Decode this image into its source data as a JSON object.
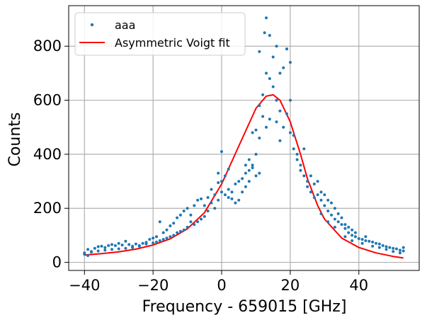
{
  "chart_data": {
    "type": "scatter",
    "xlabel": "Frequency - 659015 [GHz]",
    "ylabel": "Counts",
    "xlim": [
      -44.6,
      57.6
    ],
    "ylim": [
      -30,
      950
    ],
    "xticks": [
      -40,
      -20,
      0,
      20,
      40
    ],
    "yticks": [
      0,
      200,
      400,
      600,
      800
    ],
    "xtick_labels": [
      "−40",
      "−20",
      "0",
      "20",
      "40"
    ],
    "ytick_labels": [
      "0",
      "200",
      "400",
      "600",
      "800"
    ],
    "grid": true,
    "legend_position": "top-left",
    "colors": {
      "data": "#1f77b4",
      "fit": "#ff0000"
    },
    "series": [
      {
        "name": "aaa",
        "kind": "points",
        "points": [
          [
            -40,
            30
          ],
          [
            -39,
            48
          ],
          [
            -38,
            40
          ],
          [
            -37,
            52
          ],
          [
            -36,
            58
          ],
          [
            -35,
            60
          ],
          [
            -34,
            55
          ],
          [
            -33,
            62
          ],
          [
            -32,
            66
          ],
          [
            -31,
            62
          ],
          [
            -30,
            70
          ],
          [
            -29,
            64
          ],
          [
            -28,
            78
          ],
          [
            -27,
            66
          ],
          [
            -26,
            60
          ],
          [
            -25,
            68
          ],
          [
            -24,
            62
          ],
          [
            -23,
            70
          ],
          [
            -22,
            74
          ],
          [
            -21,
            85
          ],
          [
            -20,
            90
          ],
          [
            -19,
            95
          ],
          [
            -18,
            150
          ],
          [
            -17,
            110
          ],
          [
            -16,
            120
          ],
          [
            -15,
            135
          ],
          [
            -14,
            145
          ],
          [
            -13,
            165
          ],
          [
            -12,
            175
          ],
          [
            -11,
            190
          ],
          [
            -10,
            200
          ],
          [
            -9,
            175
          ],
          [
            -8,
            210
          ],
          [
            -7,
            230
          ],
          [
            -6,
            235
          ],
          [
            -5,
            210
          ],
          [
            -4,
            240
          ],
          [
            -3,
            270
          ],
          [
            -2,
            250
          ],
          [
            -1,
            295
          ],
          [
            0,
            300
          ],
          [
            1,
            320
          ],
          [
            2,
            270
          ],
          [
            3,
            260
          ],
          [
            4,
            290
          ],
          [
            5,
            300
          ],
          [
            6,
            310
          ],
          [
            7,
            330
          ],
          [
            8,
            340
          ],
          [
            9,
            360
          ],
          [
            10,
            400
          ],
          [
            11,
            460
          ],
          [
            12,
            620
          ],
          [
            13,
            700
          ],
          [
            14,
            680
          ],
          [
            15,
            650
          ],
          [
            16,
            600
          ],
          [
            17,
            560
          ],
          [
            18,
            500
          ],
          [
            19,
            790
          ],
          [
            20,
            480
          ],
          [
            21,
            420
          ],
          [
            22,
            380
          ],
          [
            23,
            340
          ],
          [
            24,
            320
          ],
          [
            25,
            280
          ],
          [
            26,
            260
          ],
          [
            27,
            290
          ],
          [
            28,
            250
          ],
          [
            29,
            230
          ],
          [
            30,
            210
          ],
          [
            31,
            190
          ],
          [
            32,
            175
          ],
          [
            33,
            160
          ],
          [
            34,
            150
          ],
          [
            35,
            140
          ],
          [
            36,
            125
          ],
          [
            37,
            110
          ],
          [
            38,
            100
          ],
          [
            39,
            95
          ],
          [
            40,
            88
          ],
          [
            41,
            85
          ],
          [
            42,
            80
          ],
          [
            43,
            78
          ],
          [
            44,
            75
          ],
          [
            45,
            70
          ],
          [
            46,
            68
          ],
          [
            47,
            62
          ],
          [
            48,
            58
          ],
          [
            49,
            55
          ],
          [
            50,
            52
          ],
          [
            51,
            50
          ],
          [
            52,
            45
          ],
          [
            53,
            42
          ],
          [
            13,
            905
          ],
          [
            12.5,
            850
          ],
          [
            14,
            840
          ],
          [
            11,
            780
          ],
          [
            16,
            800
          ],
          [
            19,
            790
          ],
          [
            20,
            740
          ],
          [
            15,
            760
          ],
          [
            17,
            700
          ],
          [
            18,
            720
          ],
          [
            11,
            580
          ],
          [
            12,
            540
          ],
          [
            10,
            490
          ],
          [
            9,
            480
          ],
          [
            16,
            520
          ],
          [
            17,
            450
          ],
          [
            13,
            500
          ],
          [
            14,
            530
          ],
          [
            21,
            470
          ],
          [
            22,
            400
          ],
          [
            20,
            600
          ],
          [
            19,
            550
          ],
          [
            23,
            360
          ],
          [
            24,
            420
          ],
          [
            25,
            300
          ],
          [
            26,
            320
          ],
          [
            27,
            240
          ],
          [
            28,
            300
          ],
          [
            29,
            260
          ],
          [
            30,
            250
          ],
          [
            31,
            230
          ],
          [
            32,
            220
          ],
          [
            33,
            200
          ],
          [
            34,
            180
          ],
          [
            35,
            165
          ],
          [
            36,
            140
          ],
          [
            37,
            130
          ],
          [
            38,
            120
          ],
          [
            39,
            110
          ],
          [
            42,
            95
          ],
          [
            8,
            300
          ],
          [
            7,
            280
          ],
          [
            6,
            260
          ],
          [
            5,
            230
          ],
          [
            4,
            220
          ],
          [
            3,
            235
          ],
          [
            2,
            240
          ],
          [
            1,
            250
          ],
          [
            0,
            260
          ],
          [
            -1,
            230
          ],
          [
            -2,
            200
          ],
          [
            -3,
            220
          ],
          [
            -4,
            190
          ],
          [
            -5,
            170
          ],
          [
            -6,
            160
          ],
          [
            -7,
            150
          ],
          [
            -8,
            140
          ],
          [
            -9,
            150
          ],
          [
            -10,
            130
          ],
          [
            -11,
            120
          ],
          [
            -12,
            115
          ],
          [
            -13,
            110
          ],
          [
            -14,
            100
          ],
          [
            -15,
            95
          ],
          [
            -16,
            90
          ],
          [
            -17,
            85
          ],
          [
            -18,
            80
          ],
          [
            -19,
            75
          ],
          [
            -20,
            72
          ],
          [
            -22,
            68
          ],
          [
            -24,
            60
          ],
          [
            -26,
            55
          ],
          [
            -28,
            52
          ],
          [
            -30,
            50
          ],
          [
            -32,
            48
          ],
          [
            -34,
            45
          ],
          [
            -36,
            42
          ],
          [
            -38,
            38
          ],
          [
            -40,
            35
          ],
          [
            -39,
            25
          ],
          [
            0,
            410
          ],
          [
            -1,
            330
          ],
          [
            2,
            345
          ],
          [
            10,
            320
          ],
          [
            11,
            330
          ],
          [
            9,
            350
          ],
          [
            8,
            380
          ],
          [
            7,
            360
          ],
          [
            46,
            55
          ],
          [
            48,
            48
          ],
          [
            50,
            40
          ],
          [
            52,
            35
          ],
          [
            53,
            55
          ],
          [
            44,
            60
          ],
          [
            41,
            70
          ],
          [
            38,
            80
          ],
          [
            36,
            95
          ],
          [
            33,
            130
          ],
          [
            31,
            150
          ],
          [
            29,
            180
          ]
        ]
      },
      {
        "name": "Asymmetric Voigt fit",
        "kind": "line",
        "points": [
          [
            -40,
            27
          ],
          [
            -35,
            32
          ],
          [
            -30,
            39
          ],
          [
            -25,
            49
          ],
          [
            -20,
            64
          ],
          [
            -15,
            87
          ],
          [
            -10,
            124
          ],
          [
            -5,
            184
          ],
          [
            0,
            290
          ],
          [
            5,
            430
          ],
          [
            10,
            570
          ],
          [
            13,
            615
          ],
          [
            15,
            620
          ],
          [
            17,
            600
          ],
          [
            20,
            520
          ],
          [
            23,
            400
          ],
          [
            25,
            310
          ],
          [
            28,
            210
          ],
          [
            30,
            160
          ],
          [
            35,
            90
          ],
          [
            40,
            55
          ],
          [
            45,
            35
          ],
          [
            50,
            22
          ],
          [
            53,
            16
          ]
        ]
      }
    ]
  }
}
